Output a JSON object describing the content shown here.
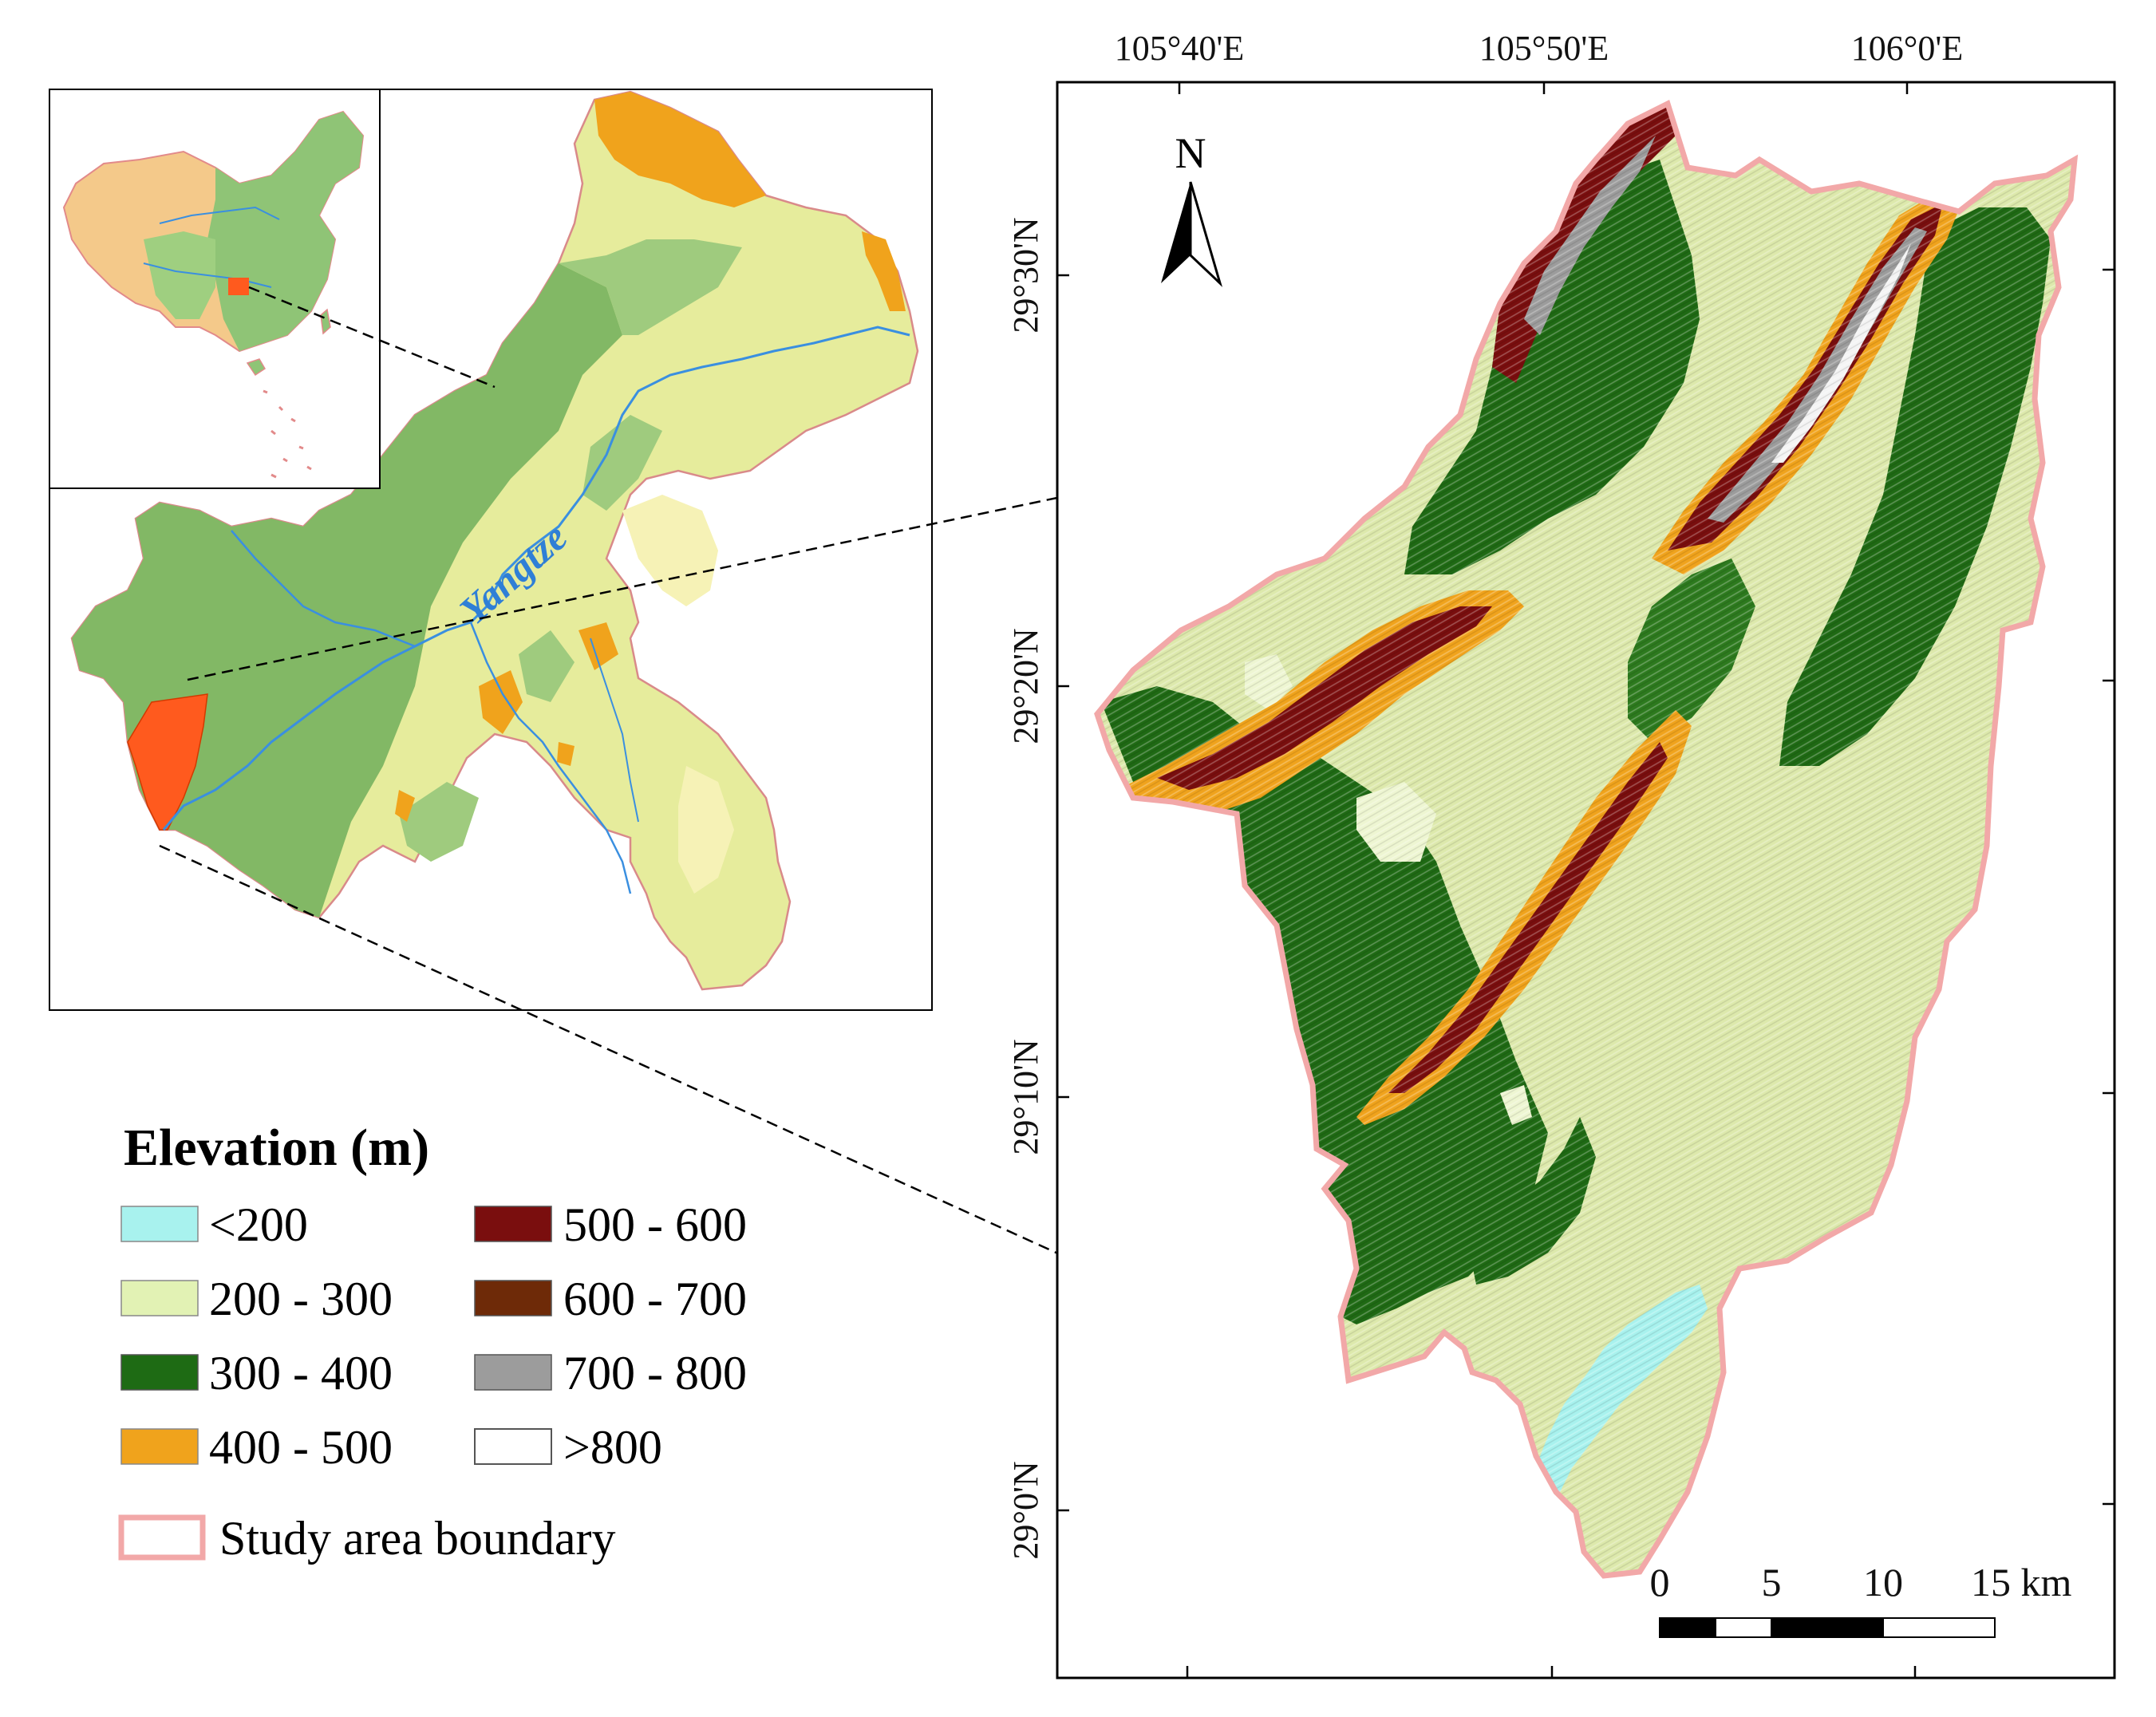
{
  "inset_map": {
    "river_label": "Yangtze"
  },
  "main_map": {
    "north_arrow_label": "N",
    "lon_labels": [
      "105°40'E",
      "105°50'E",
      "106°0'E"
    ],
    "lat_labels": [
      "29°30'N",
      "29°20'N",
      "29°10'N",
      "29°0'N"
    ]
  },
  "scale_bar": {
    "labels": [
      "0",
      "5",
      "10",
      "15 km"
    ]
  },
  "legend": {
    "title": "Elevation (m)",
    "classes": [
      {
        "label": "<200",
        "color": "#a8f2ee"
      },
      {
        "label": "200 - 300",
        "color": "#e2f2b4"
      },
      {
        "label": "300 - 400",
        "color": "#1e6b14"
      },
      {
        "label": "400 - 500",
        "color": "#f0a31c"
      },
      {
        "label": "500 - 600",
        "color": "#7a0e0e"
      },
      {
        "label": "600 - 700",
        "color": "#6e2a08"
      },
      {
        "label": "700 - 800",
        "color": "#9c9c9c"
      },
      {
        "label": ">800",
        "color": "#ffffff"
      }
    ],
    "boundary_label": "Study area boundary",
    "boundary_color": "#f2a8a8"
  },
  "colors": {
    "river": "#3a8fe0",
    "study_area_highlight": "#ff5a1e",
    "china_west": "#f4c98a",
    "china_east": "#8fc476",
    "cq_green": "#82b865",
    "cq_light": "#e8ec9e",
    "cq_orange": "#f0a31c"
  }
}
